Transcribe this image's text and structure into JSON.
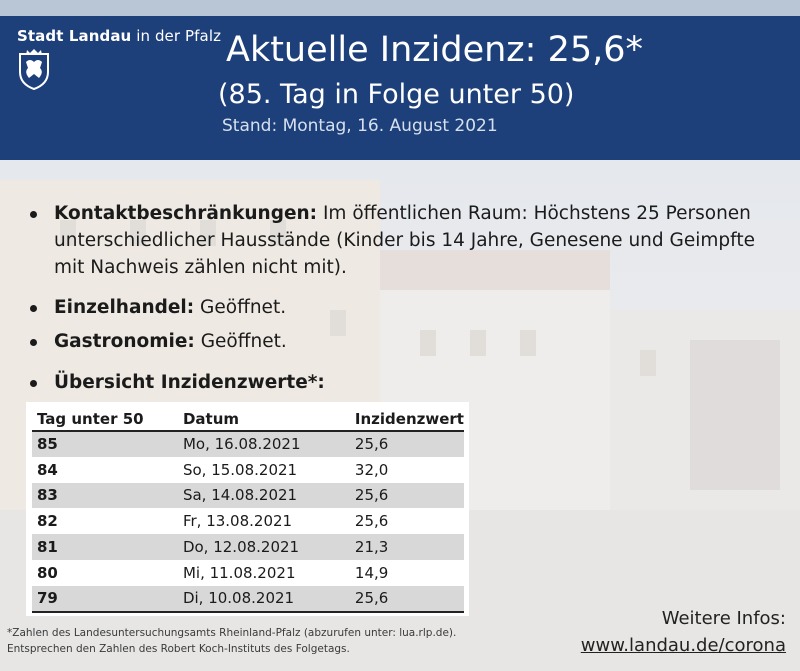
{
  "header": {
    "brand_main": "Stadt Landau",
    "brand_rest": " in der Pfalz",
    "title": "Aktuelle Inzidenz: 25,6*",
    "subtitle": "(85. Tag in Folge unter 50)",
    "stand": "Stand: Montag, 16. August 2021",
    "crest_icon": "city-crest-icon"
  },
  "bullets": [
    {
      "label": "Kontaktbeschränkungen:",
      "text": " Im öffentlichen Raum: Höchstens 25 Personen unterschiedlicher Hausstände (Kinder bis 14 Jahre, Genesene und Geimpfte mit Nachweis zählen nicht mit)."
    },
    {
      "label": "Einzelhandel:",
      "text": " Geöffnet."
    },
    {
      "label": "Gastronomie:",
      "text": " Geöffnet."
    },
    {
      "label": "Übersicht Inzidenzwerte*:",
      "text": ""
    }
  ],
  "table": {
    "headers": [
      "Tag unter 50",
      "Datum",
      "Inzidenzwert"
    ],
    "rows": [
      [
        "85",
        "Mo, 16.08.2021",
        "25,6"
      ],
      [
        "84",
        "So, 15.08.2021",
        "32,0"
      ],
      [
        "83",
        "Sa, 14.08.2021",
        "25,6"
      ],
      [
        "82",
        "Fr, 13.08.2021",
        "25,6"
      ],
      [
        "81",
        "Do, 12.08.2021",
        "21,3"
      ],
      [
        "80",
        "Mi, 11.08.2021",
        "14,9"
      ],
      [
        "79",
        "Di, 10.08.2021",
        "25,6"
      ]
    ]
  },
  "footer": {
    "note_line1": "*Zahlen des Landesuntersuchungsamts Rheinland-Pfalz (abzurufen unter: lua.rlp.de).",
    "note_line2": "Entsprechen den Zahlen des Robert Koch-Instituts des Folgetags.",
    "infos_label": "Weitere Infos:",
    "infos_link": "www.landau.de/corona"
  },
  "colors": {
    "header_bg": "#1d3f7a",
    "row_shade": "#d8d8d8"
  }
}
